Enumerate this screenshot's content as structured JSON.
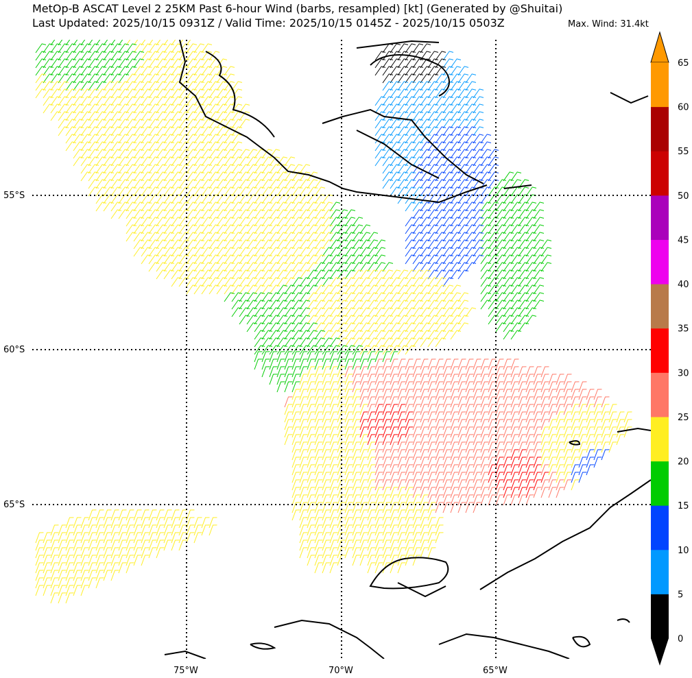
{
  "header": {
    "title_line1": "MetOp-B ASCAT Level 2 25KM Past 6-hour Wind (barbs, resampled) [kt] (Generated by @Shuitai)",
    "title_line2": "Last Updated: 2025/10/15 0931Z / Valid Time: 2025/10/15 0145Z - 2025/10/15 0503Z",
    "max_wind": "Max. Wind: 31.4kt"
  },
  "map": {
    "lat_labels": [
      "55°S",
      "60°S",
      "65°S"
    ],
    "lon_labels": [
      "75°W",
      "70°W",
      "65°W"
    ],
    "gridline_style": "dotted black"
  },
  "colorbar": {
    "ticks": [
      "0",
      "5",
      "10",
      "15",
      "20",
      "25",
      "30",
      "35",
      "40",
      "45",
      "50",
      "55",
      "60",
      "65"
    ],
    "colors": [
      "#000000",
      "#0099ff",
      "#0044ff",
      "#00cc00",
      "#ffee22",
      "#ff7766",
      "#ff0000",
      "#b87a4a",
      "#ee00ee",
      "#aa00bb",
      "#cc0000",
      "#aa0000",
      "#ff9900"
    ],
    "under_color": "#000000",
    "over_color": "#ff9900"
  },
  "legend_colors": {
    "calm_0_5": "#000000",
    "light_5_10": "#0099ff",
    "10_15": "#0044ff",
    "15_20": "#00cc00",
    "20_25": "#ffee22",
    "25_30": "#ff7766",
    "30_35": "#ff0000"
  }
}
